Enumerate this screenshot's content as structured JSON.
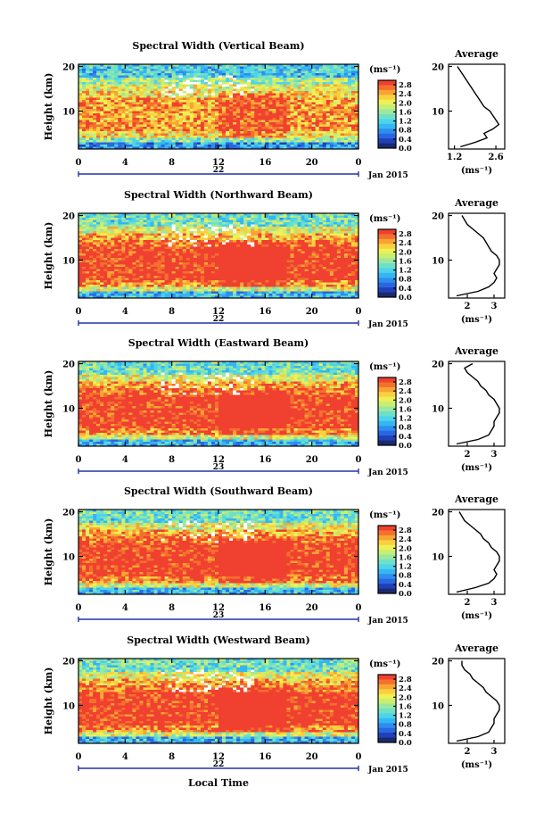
{
  "chart_data": [
    {
      "type": "heatmap",
      "title": "Spectral Width (Vertical Beam)",
      "xlabel": "",
      "ylabel": "Height (km)",
      "xticks": [
        "0",
        "4",
        "8",
        "12",
        "16",
        "20",
        "0"
      ],
      "date_label": "22",
      "date_right": "Jan 2015",
      "yticks": [
        "20",
        "10"
      ],
      "xlim": [
        0,
        24
      ],
      "ylim": [
        1.5,
        20.5
      ],
      "colorbar": {
        "unit": "(ms⁻¹)",
        "ticks": [
          "2.8",
          "2.4",
          "2.0",
          "1.6",
          "1.2",
          "0.8",
          "0.4",
          "0.0"
        ],
        "range": [
          0,
          3.0
        ]
      },
      "profile": {
        "title": "Average",
        "xticks": [
          "1.2",
          "2.6"
        ],
        "xlabel": "(ms⁻¹)",
        "yticks": [
          "20",
          "10"
        ],
        "xlim": [
          1.0,
          2.9
        ],
        "height": [
          2,
          3,
          4,
          5,
          6,
          7,
          8,
          9,
          10,
          11,
          12,
          13,
          14,
          15,
          16,
          17,
          18,
          19,
          20
        ],
        "value": [
          1.4,
          1.9,
          2.3,
          2.2,
          2.5,
          2.7,
          2.6,
          2.5,
          2.4,
          2.2,
          2.1,
          2.0,
          1.9,
          1.8,
          1.7,
          1.6,
          1.5,
          1.4,
          1.3
        ]
      }
    },
    {
      "type": "heatmap",
      "title": "Spectral Width (Northward Beam)",
      "xlabel": "",
      "ylabel": "Height (km)",
      "xticks": [
        "0",
        "4",
        "8",
        "12",
        "16",
        "20",
        "0"
      ],
      "date_label": "22",
      "date_right": "Jan 2015",
      "yticks": [
        "20",
        "10"
      ],
      "xlim": [
        0,
        24
      ],
      "ylim": [
        1.5,
        20.5
      ],
      "colorbar": {
        "unit": "(ms⁻¹)",
        "ticks": [
          "2.8",
          "2.4",
          "2.0",
          "1.6",
          "1.2",
          "0.8",
          "0.4",
          "0.0"
        ],
        "range": [
          0,
          3.0
        ]
      },
      "profile": {
        "title": "Average",
        "xticks": [
          "2",
          "3"
        ],
        "xlabel": "(ms⁻¹)",
        "yticks": [
          "20",
          "10"
        ],
        "xlim": [
          1.3,
          3.4
        ],
        "height": [
          2,
          3,
          4,
          5,
          6,
          7,
          8,
          9,
          10,
          11,
          12,
          13,
          14,
          15,
          16,
          17,
          18,
          19,
          20
        ],
        "value": [
          1.6,
          2.4,
          2.8,
          3.0,
          3.1,
          3.0,
          3.1,
          3.2,
          3.2,
          3.1,
          2.9,
          2.8,
          2.7,
          2.6,
          2.4,
          2.2,
          2.0,
          1.9,
          1.8
        ]
      }
    },
    {
      "type": "heatmap",
      "title": "Spectral Width (Eastward Beam)",
      "xlabel": "",
      "ylabel": "Height (km)",
      "xticks": [
        "0",
        "4",
        "8",
        "12",
        "16",
        "20",
        "0"
      ],
      "date_label": "23",
      "date_right": "Jan 2015",
      "yticks": [
        "20",
        "10"
      ],
      "xlim": [
        0,
        24
      ],
      "ylim": [
        1.5,
        20.5
      ],
      "colorbar": {
        "unit": "(ms⁻¹)",
        "ticks": [
          "2.8",
          "2.4",
          "2.0",
          "1.6",
          "1.2",
          "0.8",
          "0.4",
          "0.0"
        ],
        "range": [
          0,
          3.0
        ]
      },
      "profile": {
        "title": "Average",
        "xticks": [
          "2",
          "3"
        ],
        "xlabel": "(ms⁻¹)",
        "yticks": [
          "20",
          "10"
        ],
        "xlim": [
          1.3,
          3.4
        ],
        "height": [
          2,
          3,
          4,
          5,
          6,
          7,
          8,
          9,
          10,
          11,
          12,
          13,
          14,
          15,
          16,
          17,
          18,
          19,
          20
        ],
        "value": [
          1.6,
          2.4,
          2.8,
          2.9,
          3.0,
          3.0,
          3.1,
          3.2,
          3.2,
          3.1,
          3.0,
          2.8,
          2.7,
          2.5,
          2.4,
          2.2,
          2.0,
          1.9,
          2.2
        ]
      }
    },
    {
      "type": "heatmap",
      "title": "Spectral Width (Southward Beam)",
      "xlabel": "",
      "ylabel": "Height (km)",
      "xticks": [
        "0",
        "4",
        "8",
        "12",
        "16",
        "20",
        "0"
      ],
      "date_label": "23",
      "date_right": "Jan 2015",
      "yticks": [
        "20",
        "10"
      ],
      "xlim": [
        0,
        24
      ],
      "ylim": [
        1.5,
        20.5
      ],
      "colorbar": {
        "unit": "(ms⁻¹)",
        "ticks": [
          "2.8",
          "2.4",
          "2.0",
          "1.6",
          "1.2",
          "0.8",
          "0.4",
          "0.0"
        ],
        "range": [
          0,
          3.0
        ]
      },
      "profile": {
        "title": "Average",
        "xticks": [
          "2",
          "3"
        ],
        "xlabel": "(ms⁻¹)",
        "yticks": [
          "20",
          "10"
        ],
        "xlim": [
          1.3,
          3.4
        ],
        "height": [
          2,
          3,
          4,
          5,
          6,
          7,
          8,
          9,
          10,
          11,
          12,
          13,
          14,
          15,
          16,
          17,
          18,
          19,
          20
        ],
        "value": [
          1.6,
          2.3,
          2.8,
          3.0,
          3.1,
          3.0,
          3.1,
          3.2,
          3.2,
          3.1,
          2.9,
          2.8,
          2.6,
          2.5,
          2.3,
          2.1,
          1.9,
          1.8,
          1.7
        ]
      }
    },
    {
      "type": "heatmap",
      "title": "Spectral Width (Westward Beam)",
      "xlabel": "Local Time",
      "ylabel": "Height (km)",
      "xticks": [
        "0",
        "4",
        "8",
        "12",
        "16",
        "20",
        "0"
      ],
      "date_label": "22",
      "date_right": "Jan 2015",
      "yticks": [
        "20",
        "10"
      ],
      "xlim": [
        0,
        24
      ],
      "ylim": [
        1.5,
        20.5
      ],
      "colorbar": {
        "unit": "(ms⁻¹)",
        "ticks": [
          "2.8",
          "2.4",
          "2.0",
          "1.6",
          "1.2",
          "0.8",
          "0.4",
          "0.0"
        ],
        "range": [
          0,
          3.0
        ]
      },
      "profile": {
        "title": "Average",
        "xticks": [
          "2",
          "3"
        ],
        "xlabel": "(ms⁻¹)",
        "yticks": [
          "20",
          "10"
        ],
        "xlim": [
          1.3,
          3.4
        ],
        "height": [
          2,
          3,
          4,
          5,
          6,
          7,
          8,
          9,
          10,
          11,
          12,
          13,
          14,
          15,
          16,
          17,
          18,
          19,
          20
        ],
        "value": [
          1.6,
          2.4,
          2.8,
          2.9,
          3.0,
          3.0,
          3.1,
          3.2,
          3.2,
          3.1,
          2.9,
          2.7,
          2.6,
          2.4,
          2.2,
          2.1,
          1.9,
          1.8,
          1.8
        ]
      }
    }
  ]
}
